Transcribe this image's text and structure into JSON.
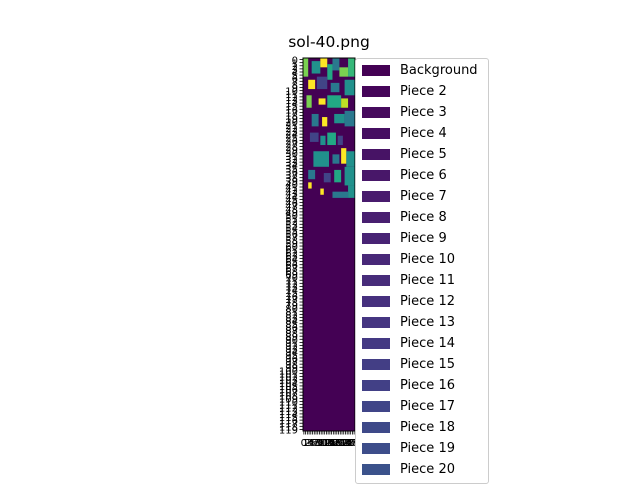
{
  "chart_data": {
    "type": "heatmap",
    "title": "sol-40.png",
    "xlabel": "",
    "ylabel": "",
    "colormap": "viridis",
    "background_color": "#440154",
    "legend_placement": "right (outside plot)",
    "legend": [
      {
        "label": "Background",
        "color": "#440154"
      },
      {
        "label": "Piece 2",
        "color": "#450559"
      },
      {
        "label": "Piece 3",
        "color": "#460a5d"
      },
      {
        "label": "Piece 4",
        "color": "#460e61"
      },
      {
        "label": "Piece 5",
        "color": "#471365"
      },
      {
        "label": "Piece 6",
        "color": "#481769"
      },
      {
        "label": "Piece 7",
        "color": "#481b6d"
      },
      {
        "label": "Piece 8",
        "color": "#481f70"
      },
      {
        "label": "Piece 9",
        "color": "#482374"
      },
      {
        "label": "Piece 10",
        "color": "#482878"
      },
      {
        "label": "Piece 11",
        "color": "#472c7a"
      },
      {
        "label": "Piece 12",
        "color": "#46307e"
      },
      {
        "label": "Piece 13",
        "color": "#453581"
      },
      {
        "label": "Piece 14",
        "color": "#443983"
      },
      {
        "label": "Piece 15",
        "color": "#433e85"
      },
      {
        "label": "Piece 16",
        "color": "#424086"
      },
      {
        "label": "Piece 17",
        "color": "#404588"
      },
      {
        "label": "Piece 18",
        "color": "#3e4989"
      },
      {
        "label": "Piece 19",
        "color": "#3d4d8a"
      },
      {
        "label": "Piece 20",
        "color": "#3b528b"
      }
    ],
    "x_tick_labels": [
      "0",
      "1",
      "2",
      "3",
      "4",
      "5",
      "6",
      "7",
      "8",
      "9",
      "10",
      "11",
      "12",
      "13",
      "14",
      "15",
      "16",
      "17",
      "18",
      "19",
      "20",
      "21",
      "22",
      "23",
      "24",
      "25",
      "26",
      "27",
      "28",
      "29"
    ],
    "y_tick_labels": [
      "0",
      "1",
      "2",
      "3",
      "4",
      "5",
      "6",
      "7",
      "8",
      "9",
      "10",
      "11",
      "12",
      "13",
      "14",
      "15",
      "16",
      "17",
      "18",
      "19",
      "20",
      "21",
      "22",
      "23",
      "24",
      "25",
      "26",
      "27",
      "28",
      "29",
      "30",
      "31",
      "32",
      "33",
      "34",
      "35",
      "36",
      "37",
      "38",
      "39",
      "40",
      "41",
      "42",
      "43",
      "44",
      "45",
      "46",
      "47",
      "48",
      "49",
      "50",
      "51",
      "52",
      "53",
      "54",
      "55",
      "56",
      "57",
      "58",
      "59",
      "60",
      "61",
      "62",
      "63",
      "64",
      "65",
      "66",
      "67",
      "68",
      "69",
      "70",
      "71",
      "72",
      "73",
      "74",
      "75",
      "76",
      "77",
      "78",
      "79",
      "80",
      "81",
      "82",
      "83",
      "84",
      "85",
      "86",
      "87",
      "88",
      "89",
      "90",
      "91",
      "92",
      "93",
      "94",
      "95",
      "96",
      "97",
      "98",
      "99",
      "100",
      "101",
      "102",
      "103",
      "104",
      "105",
      "106",
      "107",
      "108",
      "109",
      "110",
      "111",
      "112",
      "113",
      "114",
      "115",
      "116",
      "117",
      "118",
      "119"
    ],
    "grid_columns": 30,
    "grid_rows": 120,
    "pieces": [
      {
        "col": 0,
        "row": 0,
        "w": 3,
        "h": 6,
        "color": "#7ad151"
      },
      {
        "col": 5,
        "row": 1,
        "w": 5,
        "h": 4,
        "color": "#21918c"
      },
      {
        "col": 10,
        "row": 0,
        "w": 4,
        "h": 3,
        "color": "#fde725"
      },
      {
        "col": 14,
        "row": 2,
        "w": 3,
        "h": 5,
        "color": "#22a884"
      },
      {
        "col": 17,
        "row": 0,
        "w": 4,
        "h": 4,
        "color": "#2a788e"
      },
      {
        "col": 21,
        "row": 3,
        "w": 5,
        "h": 3,
        "color": "#7ad151"
      },
      {
        "col": 26,
        "row": 0,
        "w": 4,
        "h": 6,
        "color": "#35b779"
      },
      {
        "col": 3,
        "row": 7,
        "w": 4,
        "h": 3,
        "color": "#fde725"
      },
      {
        "col": 8,
        "row": 6,
        "w": 6,
        "h": 4,
        "color": "#414487"
      },
      {
        "col": 16,
        "row": 8,
        "w": 5,
        "h": 3,
        "color": "#2a788e"
      },
      {
        "col": 24,
        "row": 7,
        "w": 6,
        "h": 5,
        "color": "#21918c"
      },
      {
        "col": 2,
        "row": 12,
        "w": 3,
        "h": 4,
        "color": "#7ad151"
      },
      {
        "col": 9,
        "row": 13,
        "w": 4,
        "h": 2,
        "color": "#fde725"
      },
      {
        "col": 14,
        "row": 12,
        "w": 8,
        "h": 4,
        "color": "#22a884"
      },
      {
        "col": 22,
        "row": 13,
        "w": 4,
        "h": 3,
        "color": "#bddf26"
      },
      {
        "col": 5,
        "row": 18,
        "w": 4,
        "h": 4,
        "color": "#2a788e"
      },
      {
        "col": 11,
        "row": 19,
        "w": 3,
        "h": 3,
        "color": "#fde725"
      },
      {
        "col": 18,
        "row": 18,
        "w": 6,
        "h": 3,
        "color": "#21918c"
      },
      {
        "col": 24,
        "row": 17,
        "w": 6,
        "h": 5,
        "color": "#2a788e"
      },
      {
        "col": 4,
        "row": 24,
        "w": 5,
        "h": 3,
        "color": "#414487"
      },
      {
        "col": 10,
        "row": 25,
        "w": 3,
        "h": 3,
        "color": "#21918c"
      },
      {
        "col": 14,
        "row": 24,
        "w": 5,
        "h": 4,
        "color": "#22a884"
      },
      {
        "col": 20,
        "row": 25,
        "w": 3,
        "h": 3,
        "color": "#414487"
      },
      {
        "col": 6,
        "row": 30,
        "w": 9,
        "h": 5,
        "color": "#21918c"
      },
      {
        "col": 17,
        "row": 31,
        "w": 4,
        "h": 3,
        "color": "#2a788e"
      },
      {
        "col": 22,
        "row": 29,
        "w": 3,
        "h": 5,
        "color": "#fde725"
      },
      {
        "col": 25,
        "row": 30,
        "w": 5,
        "h": 5,
        "color": "#21918c"
      },
      {
        "col": 3,
        "row": 36,
        "w": 4,
        "h": 3,
        "color": "#2a788e"
      },
      {
        "col": 12,
        "row": 37,
        "w": 4,
        "h": 3,
        "color": "#414487"
      },
      {
        "col": 18,
        "row": 36,
        "w": 4,
        "h": 4,
        "color": "#22a884"
      },
      {
        "col": 24,
        "row": 35,
        "w": 6,
        "h": 6,
        "color": "#21918c"
      },
      {
        "col": 10,
        "row": 42,
        "w": 2,
        "h": 2,
        "color": "#fde725"
      },
      {
        "col": 17,
        "row": 43,
        "w": 9,
        "h": 2,
        "color": "#2a788e"
      },
      {
        "col": 26,
        "row": 41,
        "w": 4,
        "h": 4,
        "color": "#21918c"
      },
      {
        "col": 3,
        "row": 40,
        "w": 2,
        "h": 2,
        "color": "#fde725"
      }
    ]
  }
}
